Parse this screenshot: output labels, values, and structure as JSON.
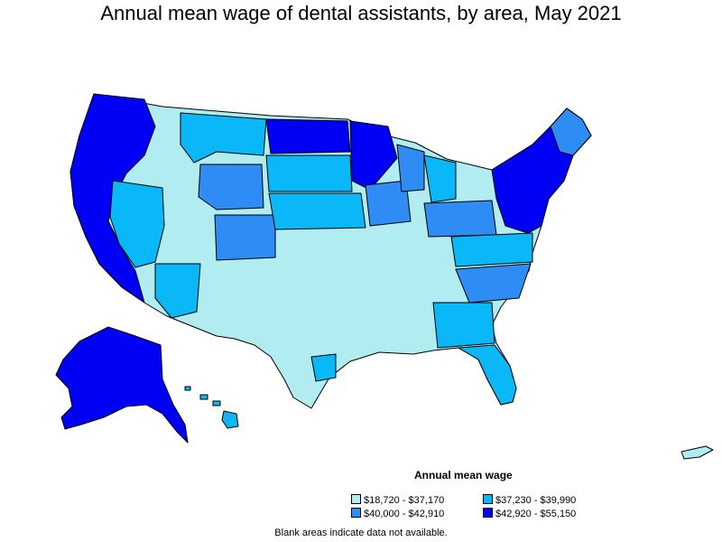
{
  "title": "Annual mean wage of dental assistants, by area, May 2021",
  "legend": {
    "title": "Annual mean wage",
    "items": [
      {
        "label": "$18,720 - $37,170",
        "color": "#b0ecf0"
      },
      {
        "label": "$40,000 - $42,910",
        "color": "#2f8cf5"
      },
      {
        "label": "$37,230 - $39,990",
        "color": "#0bb8f7"
      },
      {
        "label": "$42,920 - $55,150",
        "color": "#0000f5"
      }
    ]
  },
  "footnote": "Blank areas indicate data not available."
}
